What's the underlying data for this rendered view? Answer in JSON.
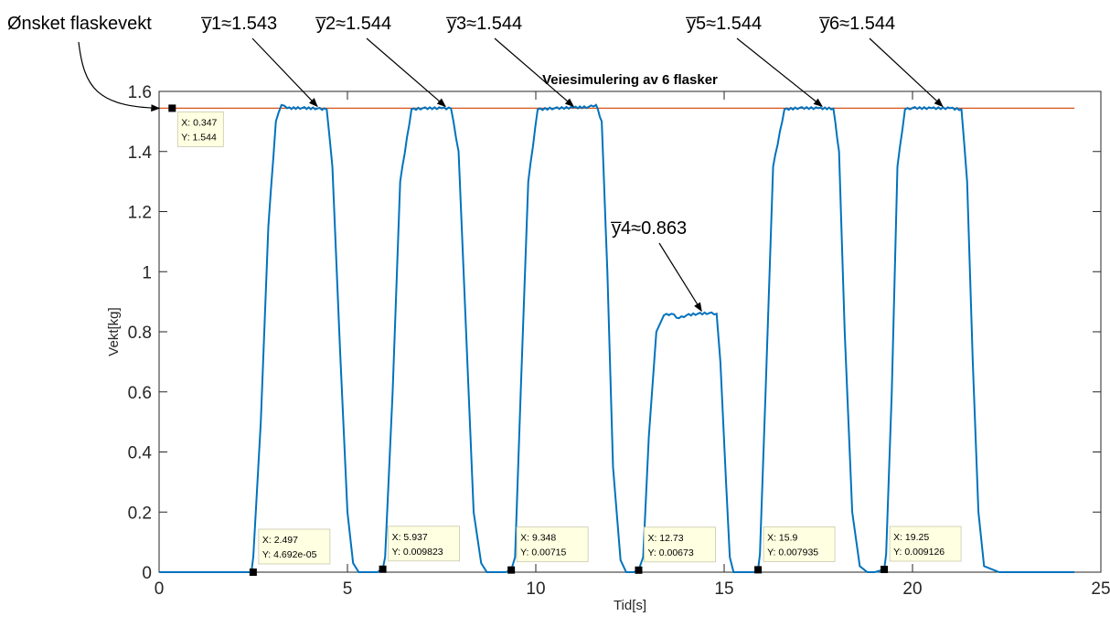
{
  "chart_data": {
    "type": "line",
    "title": "Veiesimulering av 6 flasker",
    "xlabel": "Tid[s]",
    "ylabel": "Vekt[kg]",
    "xlim": [
      0,
      25
    ],
    "ylim": [
      0,
      1.6
    ],
    "xticks": [
      "0",
      "5",
      "10",
      "15",
      "20",
      "25"
    ],
    "yticks": [
      "0",
      "0.2",
      "0.4",
      "0.6",
      "0.8",
      "1",
      "1.2",
      "1.4",
      "1.6"
    ],
    "colors": {
      "series": "#0072bd",
      "reference": "#d95319"
    },
    "reference_line": {
      "y": 1.544,
      "x_range": [
        0,
        24.3
      ]
    },
    "series": [
      {
        "x": [
          0,
          2.45,
          2.5,
          2.7,
          2.9,
          3.1,
          3.25,
          3.4,
          3.8,
          4.2,
          4.45,
          4.6,
          4.8,
          5.0,
          5.15,
          5.3,
          5.8,
          5.9,
          5.937,
          6.0,
          6.2,
          6.4,
          6.7,
          7.0,
          7.5,
          7.75,
          7.95,
          8.15,
          8.35,
          8.55,
          8.7,
          8.9,
          9.2,
          9.348,
          9.45,
          9.6,
          9.8,
          10.05,
          10.5,
          11.0,
          11.4,
          11.6,
          11.75,
          11.9,
          12.05,
          12.25,
          12.4,
          12.6,
          12.73,
          12.85,
          13.0,
          13.2,
          13.4,
          13.6,
          13.8,
          14.0,
          14.3,
          14.6,
          14.8,
          14.9,
          15.05,
          15.15,
          15.25,
          15.6,
          15.85,
          15.9,
          15.95,
          16.1,
          16.3,
          16.6,
          17.0,
          17.5,
          17.9,
          18.05,
          18.2,
          18.4,
          18.6,
          18.8,
          19.0,
          19.25,
          19.3,
          19.45,
          19.6,
          19.8,
          20.0,
          20.5,
          21.0,
          21.3,
          21.45,
          21.6,
          21.75,
          21.9,
          22.3,
          24.3
        ],
        "y": [
          0,
          0,
          0.05,
          0.5,
          1.15,
          1.5,
          1.555,
          1.544,
          1.545,
          1.543,
          1.54,
          1.35,
          0.75,
          0.2,
          0.03,
          0,
          0,
          0.01,
          0.009823,
          0.05,
          0.6,
          1.3,
          1.54,
          1.544,
          1.544,
          1.543,
          1.4,
          0.8,
          0.2,
          0.03,
          0,
          0,
          0,
          0.00715,
          0.05,
          0.6,
          1.3,
          1.54,
          1.544,
          1.546,
          1.548,
          1.555,
          1.5,
          1.0,
          0.35,
          0.04,
          0,
          0,
          0.00673,
          0.05,
          0.45,
          0.8,
          0.855,
          0.86,
          0.845,
          0.855,
          0.86,
          0.862,
          0.86,
          0.7,
          0.3,
          0.05,
          0,
          0,
          0,
          0.007935,
          0.06,
          0.6,
          1.35,
          1.54,
          1.545,
          1.544,
          1.543,
          1.4,
          0.8,
          0.2,
          0.02,
          0,
          0,
          0.009126,
          0.06,
          0.6,
          1.35,
          1.54,
          1.545,
          1.544,
          1.544,
          1.54,
          1.3,
          0.7,
          0.2,
          0.02,
          0,
          0
        ]
      }
    ],
    "datatips": [
      {
        "x": 0.347,
        "y": 1.544,
        "label_x": "X: 0.347",
        "label_y": "Y: 1.544"
      },
      {
        "x": 2.497,
        "y": 0,
        "label_x": "X: 2.497",
        "label_y": "Y: 4.692e-05"
      },
      {
        "x": 5.937,
        "y": 0.009823,
        "label_x": "X: 5.937",
        "label_y": "Y: 0.009823"
      },
      {
        "x": 9.348,
        "y": 0.00715,
        "label_x": "X: 9.348",
        "label_y": "Y: 0.00715"
      },
      {
        "x": 12.73,
        "y": 0.00673,
        "label_x": "X: 12.73",
        "label_y": "Y: 0.00673"
      },
      {
        "x": 15.9,
        "y": 0.007935,
        "label_x": "X: 15.9",
        "label_y": "Y: 0.007935"
      },
      {
        "x": 19.25,
        "y": 0.009126,
        "label_x": "X: 19.25",
        "label_y": "Y: 0.009126"
      }
    ],
    "annotations": [
      {
        "text": "Ønsket flaskevekt",
        "target_x": 0.2,
        "target_y": 1.544
      },
      {
        "text": "y̅1≈1.543",
        "target_x": 4.2,
        "target_y": 1.544
      },
      {
        "text": "y̅2≈1.544",
        "target_x": 7.6,
        "target_y": 1.544
      },
      {
        "text": "y̅3≈1.544",
        "target_x": 11.0,
        "target_y": 1.544
      },
      {
        "text": "y̅4≈0.863",
        "target_x": 14.4,
        "target_y": 0.863
      },
      {
        "text": "y̅5≈1.544",
        "target_x": 17.6,
        "target_y": 1.544
      },
      {
        "text": "y̅6≈1.544",
        "target_x": 20.8,
        "target_y": 1.544
      }
    ]
  }
}
